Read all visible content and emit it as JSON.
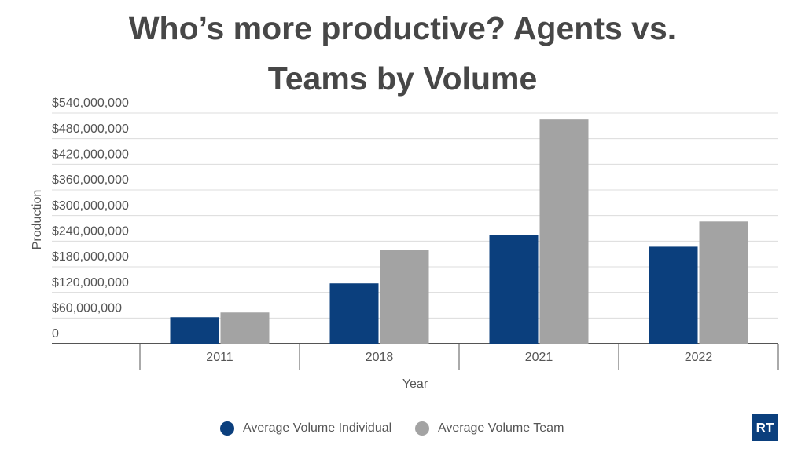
{
  "chart_data": {
    "type": "bar",
    "title": "Who’s more productive? Agents vs. Teams by Volume",
    "x_label": "Year",
    "y_label": "Production",
    "categories": [
      "2011",
      "2018",
      "2021",
      "2022"
    ],
    "series": [
      {
        "name": "Average Volume Individual",
        "color": "#0b3f7d",
        "values": [
          62000000,
          141000000,
          255000000,
          227000000
        ]
      },
      {
        "name": "Average Volume Team",
        "color": "#a3a3a3",
        "values": [
          73000000,
          220000000,
          525000000,
          286000000
        ]
      }
    ],
    "ylim": [
      0,
      540000000
    ],
    "yticks": [
      0,
      {
        "value": 60000000,
        "label": "$60,000,000"
      },
      {
        "value": 120000000,
        "label": "$120,000,000"
      },
      {
        "value": 180000000,
        "label": "$180,000,000"
      },
      {
        "value": 240000000,
        "label": "$240,000,000"
      },
      {
        "value": 300000000,
        "label": "$300,000,000"
      },
      {
        "value": 360000000,
        "label": "$360,000,000"
      },
      {
        "value": 420000000,
        "label": "$420,000,000"
      },
      {
        "value": 480000000,
        "label": "$480,000,000"
      },
      {
        "value": 540000000,
        "label": "$540,000,000"
      }
    ],
    "grid": true,
    "legend": "bottom"
  },
  "logo": "RT"
}
